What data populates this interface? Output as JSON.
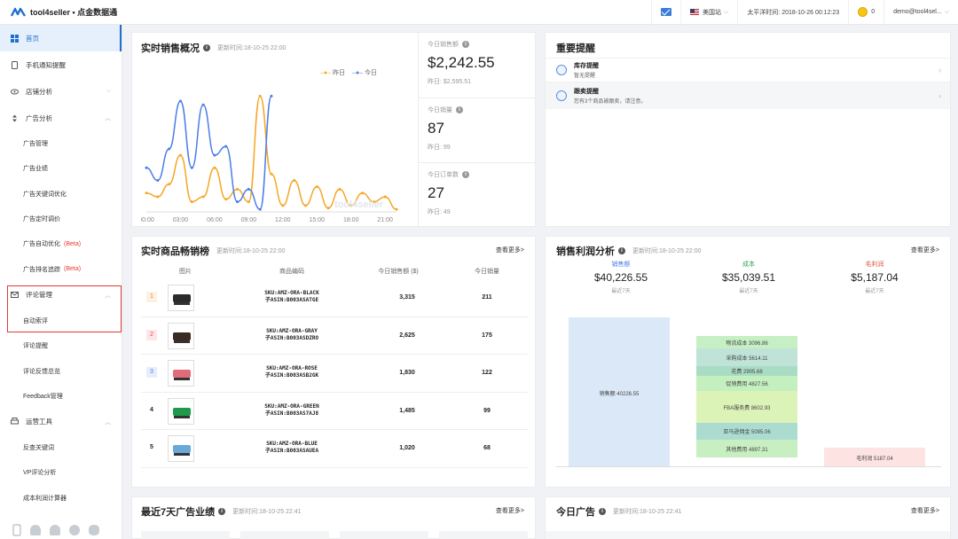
{
  "topbar": {
    "brand": "tool4seller • 点金数据通",
    "marketplace": "美国站",
    "timezone_time": "太平洋时间: 2018-10-26 00:12:23",
    "coins": "0",
    "user": "demo@tool4sel..."
  },
  "sidebar": {
    "items": [
      {
        "label": "首页"
      },
      {
        "label": "手机通知提醒"
      },
      {
        "label": "店铺分析"
      },
      {
        "label": "广告分析"
      }
    ],
    "ad_sub": [
      "广告管理",
      "广告业绩",
      "广告关键词优化",
      "广告定时调价",
      "广告自动优化",
      "广告排名追踪"
    ],
    "beta": "(Beta)",
    "review_group": "评论管理",
    "review_sub": [
      "自动索评",
      "评论提醒",
      "评论反馈总览",
      "Feedback管理"
    ],
    "tools_group": "运营工具",
    "tools_sub": [
      "反查关键词",
      "VP评论分析",
      "成本利润计算器"
    ]
  },
  "sales_overview": {
    "title": "实时销售概况",
    "updated": "更新时间:18-10-25 22:00",
    "legend_yesterday": "昨日",
    "legend_today": "今日",
    "watermark": "tool4seller",
    "stats": [
      {
        "label": "今日销售额",
        "value": "$2,242.55",
        "sub": "昨日: $2,595.51"
      },
      {
        "label": "今日销量",
        "value": "87",
        "sub": "昨日: 99"
      },
      {
        "label": "今日订单数",
        "value": "27",
        "sub": "昨日: 49"
      }
    ]
  },
  "chart_data": {
    "type": "line",
    "x": [
      "00:00",
      "01:00",
      "02:00",
      "03:00",
      "04:00",
      "05:00",
      "06:00",
      "07:00",
      "08:00",
      "09:00",
      "10:00",
      "11:00",
      "12:00",
      "13:00",
      "14:00",
      "15:00",
      "16:00",
      "17:00",
      "18:00",
      "19:00",
      "20:00",
      "21:00",
      "22:00"
    ],
    "tick_labels": [
      "00:00",
      "03:00",
      "06:00",
      "09:00",
      "12:00",
      "15:00",
      "18:00",
      "21:00"
    ],
    "series": [
      {
        "name": "昨日",
        "color": "#f5a623",
        "values": [
          15,
          12,
          22,
          45,
          8,
          12,
          35,
          10,
          18,
          8,
          92,
          30,
          5,
          25,
          5,
          20,
          3,
          18,
          5,
          15,
          8,
          12,
          2
        ]
      },
      {
        "name": "今日",
        "color": "#4a7de8",
        "values": [
          35,
          25,
          50,
          88,
          35,
          85,
          45,
          52,
          8,
          18,
          2,
          92,
          null,
          null,
          null,
          null,
          null,
          null,
          null,
          null,
          null,
          null,
          null
        ]
      }
    ],
    "ylim": [
      0,
      100
    ],
    "grid": false,
    "legend": "top-right"
  },
  "reminders": {
    "title": "重要提醒",
    "items": [
      {
        "title": "库存提醒",
        "sub": "暂无提醒"
      },
      {
        "title": "跟卖提醒",
        "sub": "您有3个商品被跟卖，请注意。"
      }
    ]
  },
  "bestsellers": {
    "title": "实时商品畅销榜",
    "updated": "更新时间:18-10-25 22:00",
    "more": "查看更多>",
    "headers": [
      "图片",
      "商品编码",
      "今日销售额 ($)",
      "今日销量"
    ],
    "rows": [
      {
        "rank": "1",
        "sku": "SKU:AMZ-ORA-BLACK",
        "asin": "子ASIN:B003ASATGE",
        "sales": "3,315",
        "qty": "211",
        "color": "#2b2b2b",
        "badge": "#fdf1e3",
        "badge_text": "#e08a2b"
      },
      {
        "rank": "2",
        "sku": "SKU:AMZ-ORA-GRAY",
        "asin": "子ASIN:B003ASDZRO",
        "sales": "2,625",
        "qty": "175",
        "color": "#3a2a22",
        "badge": "#fde6e8",
        "badge_text": "#e04a5a"
      },
      {
        "rank": "3",
        "sku": "SKU:AMZ-ORA-ROSE",
        "asin": "子ASIN:B003ASB2GK",
        "sales": "1,830",
        "qty": "122",
        "color": "#e26b7a",
        "badge": "#e6eefc",
        "badge_text": "#4a7de8"
      },
      {
        "rank": "4",
        "sku": "SKU:AMZ-ORA-GREEN",
        "asin": "子ASIN:B003AS7AJ8",
        "sales": "1,485",
        "qty": "99",
        "color": "#1f9a4a",
        "badge": "#ffffff",
        "badge_text": "#222222"
      },
      {
        "rank": "5",
        "sku": "SKU:AMZ-ORA-BLUE",
        "asin": "子ASIN:B003ASAUEA",
        "sales": "1,020",
        "qty": "68",
        "color": "#6aa8d8",
        "badge": "#ffffff",
        "badge_text": "#222222"
      }
    ]
  },
  "profit": {
    "title": "销售利润分析",
    "updated": "更新时间:18-10-25 22:00",
    "more": "查看更多>",
    "cols": [
      {
        "label": "销售额",
        "value": "$40,226.55",
        "sub": "最近7天",
        "color": "#4a7de8"
      },
      {
        "label": "成本",
        "value": "$35,039.51",
        "sub": "最近7天",
        "color": "#2da44e"
      },
      {
        "label": "毛利润",
        "value": "$5,187.04",
        "sub": "最近7天",
        "color": "#e05a4a"
      }
    ],
    "bars": {
      "sales_label": "销售额 40226.55",
      "cost_items": [
        {
          "label": "物流成本 3096.86",
          "color": "#c6efc4"
        },
        {
          "label": "采购成本 5614.11",
          "color": "#bfe3d6"
        },
        {
          "label": "花费 2905.68",
          "color": "#a9dcc4"
        },
        {
          "label": "促销费用 4827.56",
          "color": "#c4efbf"
        },
        {
          "label": "FBA服务费 8602.93",
          "color": "#dcf3b8"
        },
        {
          "label": "亚马逊佣金 5095.06",
          "color": "#acdcd0"
        },
        {
          "label": "其他费用 4897.31",
          "color": "#c8efc2"
        }
      ],
      "profit_label": "毛利润 5187.04"
    }
  },
  "ads7": {
    "title": "最近7天广告业绩",
    "updated": "更新时间:18-10-25 22:41",
    "more": "查看更多>"
  },
  "today_ads": {
    "title": "今日广告",
    "updated": "更新时间:18-10-25 22:41",
    "more": "查看更多>"
  }
}
